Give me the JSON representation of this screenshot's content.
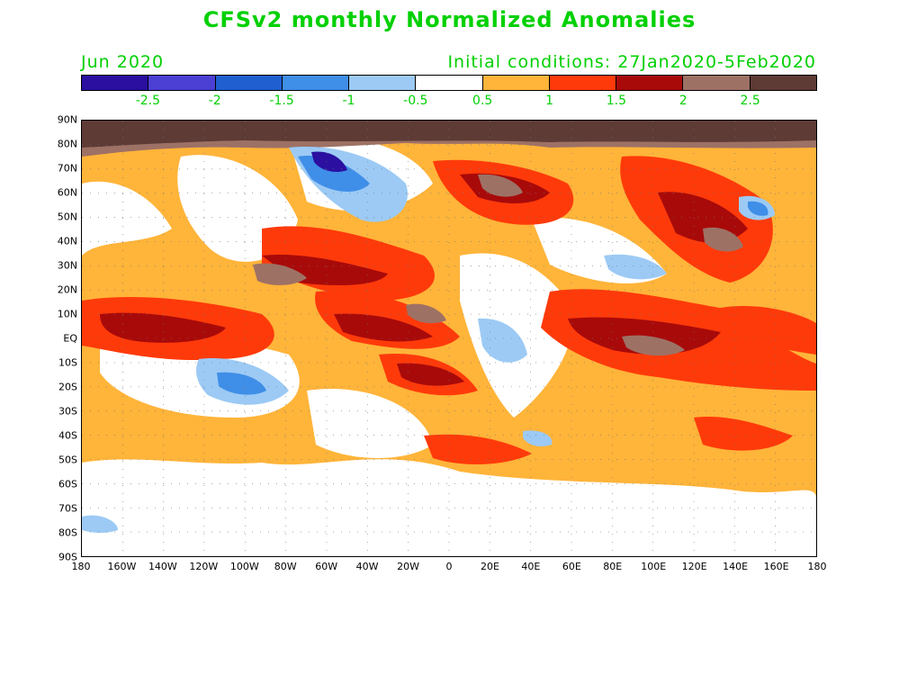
{
  "title": "CFSv2 monthly Normalized Anomalies",
  "subtitle_left": "Jun 2020",
  "subtitle_right": "Initial conditions: 27Jan2020-5Feb2020",
  "colorbar": {
    "colors": [
      "#2a0fa0",
      "#4b3fd4",
      "#1f5fd0",
      "#3f8ee8",
      "#9ccaf5",
      "#ffffff",
      "#ffb43a",
      "#ff3a0a",
      "#a80a0a",
      "#9e7165",
      "#5e3b35"
    ],
    "labels": [
      "-2.5",
      "-2",
      "-1.5",
      "-1",
      "-0.5",
      "0.5",
      "1",
      "1.5",
      "2",
      "2.5"
    ]
  },
  "lat_labels": [
    "90N",
    "80N",
    "70N",
    "60N",
    "50N",
    "40N",
    "30N",
    "20N",
    "10N",
    "EQ",
    "10S",
    "20S",
    "30S",
    "40S",
    "50S",
    "60S",
    "70S",
    "80S",
    "90S"
  ],
  "lon_labels": [
    "180",
    "160W",
    "140W",
    "120W",
    "100W",
    "80W",
    "60W",
    "40W",
    "20W",
    "0",
    "20E",
    "40E",
    "60E",
    "80E",
    "100E",
    "120E",
    "140E",
    "160E",
    "180"
  ]
}
